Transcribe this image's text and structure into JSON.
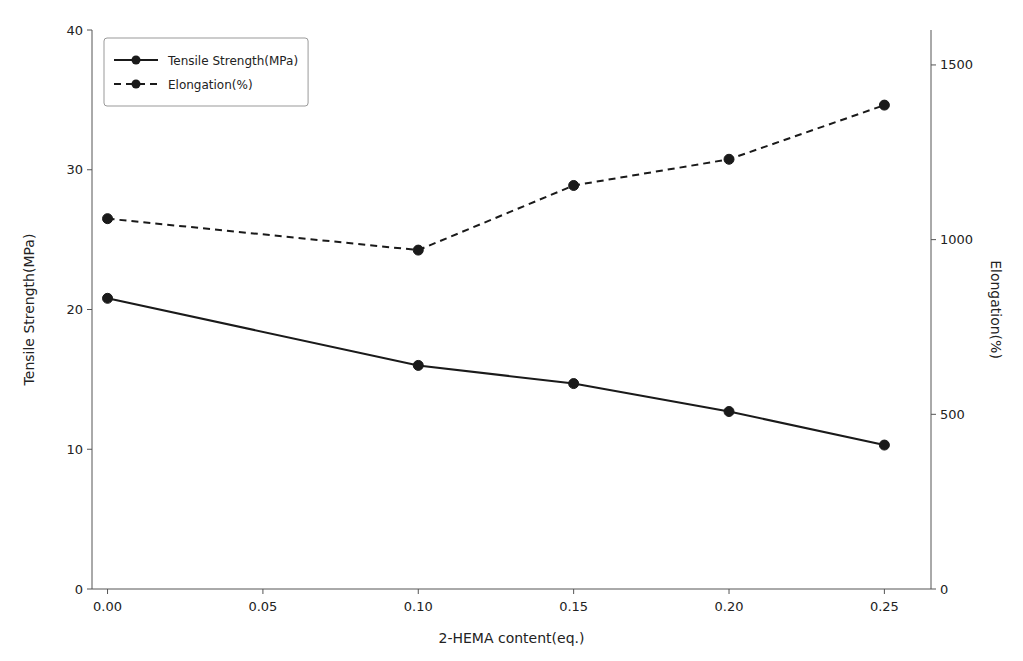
{
  "chart_data": {
    "type": "line",
    "x": [
      0.0,
      0.1,
      0.15,
      0.2,
      0.25
    ],
    "xlabel": "2-HEMA content(eq.)",
    "ylabel": "Tensile Strength(MPa)",
    "y2label": "Elongation(%)",
    "xlim": [
      -0.005,
      0.265
    ],
    "xticks": [
      {
        "value": 0.0,
        "label": "0.00"
      },
      {
        "value": 0.05,
        "label": "0.05"
      },
      {
        "value": 0.1,
        "label": "0.10"
      },
      {
        "value": 0.15,
        "label": "0.15"
      },
      {
        "value": 0.2,
        "label": "0.20"
      },
      {
        "value": 0.25,
        "label": "0.25"
      }
    ],
    "ylim": [
      0,
      40
    ],
    "yticks": [
      0,
      10,
      20,
      30,
      40
    ],
    "y2lim": [
      0,
      1600
    ],
    "y2ticks": [
      0,
      500,
      1000,
      1500
    ],
    "grid": false,
    "legend": "upper left",
    "series": [
      {
        "name": "Tensile Strength(MPa)",
        "color": "#1a1a1a",
        "line_style": "solid",
        "marker": "circle",
        "values": [
          20.8,
          16.0,
          14.7,
          12.7,
          10.3
        ]
      },
      {
        "name": "Elongation(%)",
        "color": "#1a1a1a",
        "line_style": "dashed",
        "marker": "circle",
        "axis": "y2",
        "values": [
          1060,
          970,
          1155,
          1230,
          1385
        ]
      }
    ]
  }
}
